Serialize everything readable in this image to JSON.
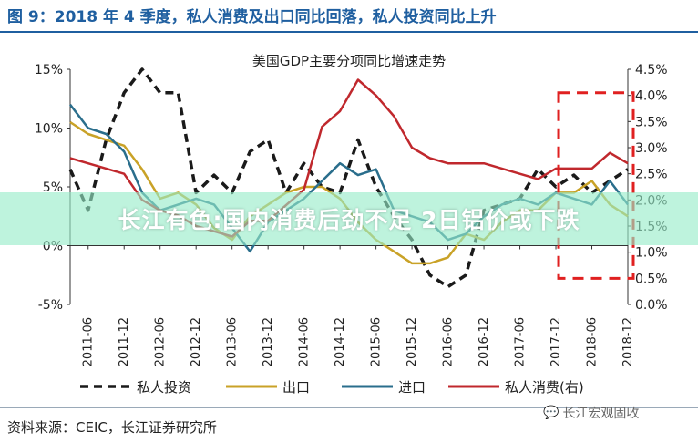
{
  "page": {
    "figure_title": "图 9：2018 年 4 季度，私人消费及出口同比回落，私人投资同比上升",
    "source_text": "资料来源：CEIC，长江证券研究所",
    "banner_text": "长江有色:国内消费后劲不足 2日铝价或下跌",
    "watermark_text": "长江宏观固收"
  },
  "chart_data": {
    "type": "line",
    "title": "美国GDP主要分项同比增速走势",
    "x": [
      "2011-03",
      "2011-06",
      "2011-09",
      "2011-12",
      "2012-03",
      "2012-06",
      "2012-09",
      "2012-12",
      "2013-03",
      "2013-06",
      "2013-09",
      "2013-12",
      "2014-03",
      "2014-06",
      "2014-09",
      "2014-12",
      "2015-03",
      "2015-06",
      "2015-09",
      "2015-12",
      "2016-03",
      "2016-06",
      "2016-09",
      "2016-12",
      "2017-03",
      "2017-06",
      "2017-09",
      "2017-12",
      "2018-03",
      "2018-06",
      "2018-09",
      "2018-12"
    ],
    "x_tick_labels": [
      "2011-06",
      "2011-12",
      "2012-06",
      "2012-12",
      "2013-06",
      "2013-12",
      "2014-06",
      "2014-12",
      "2015-06",
      "2015-12",
      "2016-06",
      "2016-12",
      "2017-06",
      "2017-12",
      "2018-06",
      "2018-12"
    ],
    "y_left": {
      "min": -5,
      "max": 15,
      "ticks": [
        "-5%",
        "0%",
        "5%",
        "10%",
        "15%"
      ],
      "tick_values": [
        -5,
        0,
        5,
        10,
        15
      ]
    },
    "y_right": {
      "min": 0,
      "max": 4.5,
      "ticks": [
        "0.0%",
        "0.5%",
        "1.0%",
        "1.5%",
        "2.0%",
        "2.5%",
        "3.0%",
        "3.5%",
        "4.0%",
        "4.5%"
      ],
      "tick_values": [
        0,
        0.5,
        1,
        1.5,
        2,
        2.5,
        3,
        3.5,
        4,
        4.5
      ]
    },
    "series": [
      {
        "name": "私人投资",
        "axis": "left",
        "color": "#1a1a1a",
        "dash": "dashed",
        "values": [
          6.5,
          3.0,
          9.0,
          13.0,
          15.0,
          13.0,
          13.0,
          4.5,
          6.0,
          4.5,
          8.0,
          9.0,
          4.5,
          7.0,
          5.0,
          4.5,
          9.0,
          5.0,
          2.5,
          0.5,
          -2.5,
          -3.5,
          -2.5,
          3.0,
          3.5,
          4.0,
          6.5,
          5.0,
          6.0,
          4.5,
          5.5,
          6.5
        ]
      },
      {
        "name": "出口",
        "axis": "left",
        "color": "#c9a227",
        "dash": "solid",
        "values": [
          10.5,
          9.5,
          9.0,
          8.5,
          6.5,
          4.0,
          4.5,
          3.5,
          1.5,
          0.5,
          2.5,
          3.5,
          4.5,
          5.0,
          5.0,
          4.0,
          2.0,
          0.5,
          -0.5,
          -1.5,
          -1.5,
          -1.0,
          1.0,
          0.5,
          2.0,
          3.0,
          3.0,
          4.5,
          4.5,
          5.5,
          3.5,
          2.5
        ]
      },
      {
        "name": "进口",
        "axis": "left",
        "color": "#2a6e8c",
        "dash": "solid",
        "values": [
          12.0,
          10.0,
          9.5,
          8.0,
          4.5,
          3.0,
          3.5,
          4.0,
          3.5,
          1.5,
          -0.5,
          2.0,
          3.0,
          4.0,
          5.5,
          7.0,
          6.0,
          6.5,
          3.0,
          2.5,
          2.0,
          0.5,
          1.0,
          2.5,
          3.5,
          4.0,
          3.5,
          4.5,
          4.0,
          3.5,
          5.5,
          3.5
        ]
      },
      {
        "name": "私人消费(右)",
        "axis": "right",
        "color": "#c0282d",
        "dash": "solid",
        "values": [
          2.8,
          2.7,
          2.6,
          2.5,
          2.0,
          1.8,
          1.7,
          1.5,
          1.4,
          1.3,
          1.6,
          1.6,
          1.9,
          2.2,
          3.4,
          3.7,
          4.3,
          4.0,
          3.6,
          3.0,
          2.8,
          2.7,
          2.7,
          2.7,
          2.6,
          2.5,
          2.4,
          2.6,
          2.6,
          2.6,
          2.9,
          2.7
        ]
      }
    ],
    "legend": {
      "position": "bottom",
      "entries": [
        "私人投资",
        "出口",
        "进口",
        "私人消费(右)"
      ]
    },
    "annotation": {
      "type": "dashed-box",
      "color": "#e02020",
      "from_x": "2017-12",
      "to_x": "2018-12",
      "y_right_top": 4.05,
      "y_right_bottom": 0.5
    },
    "grid": false
  }
}
